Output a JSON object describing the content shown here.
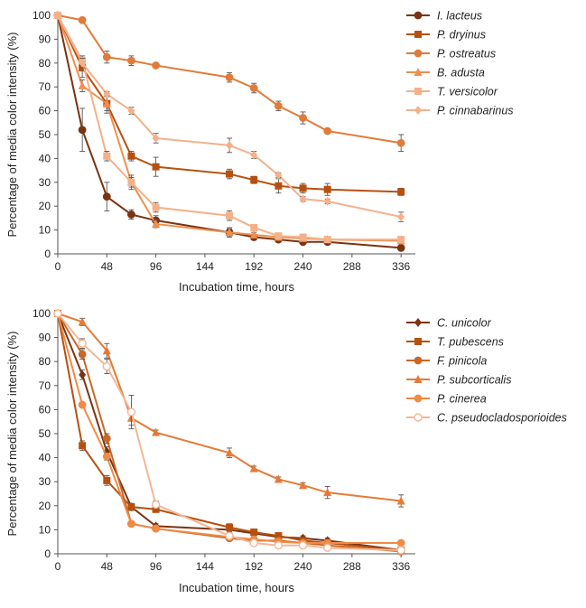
{
  "chart_data": [
    {
      "type": "line",
      "title": "",
      "xlabel": "Incubation time, hours",
      "ylabel": "Percentage of media color intensity (%)",
      "xlim": [
        0,
        350
      ],
      "ylim": [
        0,
        100
      ],
      "xticks": [
        0,
        48,
        96,
        144,
        192,
        240,
        288,
        336
      ],
      "yticks": [
        0,
        10,
        20,
        30,
        40,
        50,
        60,
        70,
        80,
        90,
        100
      ],
      "legend_position": "top-right",
      "series": [
        {
          "name": "I. lacteus",
          "marker": "circle",
          "color": "#7a3311",
          "x": [
            0,
            24,
            48,
            72,
            96,
            168,
            192,
            216,
            240,
            264,
            336
          ],
          "y": [
            100,
            52,
            24,
            16.5,
            14,
            9,
            7,
            6,
            5,
            5,
            2.5
          ],
          "err": [
            0,
            9,
            6,
            2,
            2,
            2,
            1,
            1,
            1,
            1,
            1
          ]
        },
        {
          "name": "P. dryinus",
          "marker": "square",
          "color": "#b7500f",
          "x": [
            0,
            24,
            48,
            72,
            96,
            168,
            192,
            216,
            240,
            264,
            336
          ],
          "y": [
            100,
            78,
            63,
            41,
            36.5,
            33.5,
            31,
            28.5,
            27.5,
            27,
            26
          ],
          "err": [
            0,
            4,
            4,
            2,
            4,
            2,
            1.5,
            3,
            2,
            2.5,
            1.5
          ]
        },
        {
          "name": "P. ostreatus",
          "marker": "circle",
          "color": "#e07b39",
          "x": [
            0,
            24,
            48,
            72,
            96,
            168,
            192,
            216,
            240,
            264,
            336
          ],
          "y": [
            100,
            98,
            82.5,
            81,
            79,
            74,
            69.5,
            62,
            57,
            51.5,
            46.5
          ],
          "err": [
            0,
            0.5,
            2.5,
            2,
            0.5,
            2,
            2,
            2,
            2.5,
            0.5,
            3.5
          ]
        },
        {
          "name": "B. adusta",
          "marker": "triangle",
          "color": "#ef8f4e",
          "x": [
            0,
            24,
            48,
            72,
            96,
            168,
            192,
            216,
            240,
            264,
            336
          ],
          "y": [
            100,
            70.5,
            63,
            30,
            12.5,
            9,
            8,
            7,
            6.5,
            6,
            5.5
          ],
          "err": [
            0,
            2.5,
            3,
            2,
            1.5,
            1.5,
            1,
            1,
            1,
            1,
            1
          ]
        },
        {
          "name": "T. versicolor",
          "marker": "square",
          "color": "#f5b088",
          "x": [
            0,
            24,
            48,
            72,
            96,
            168,
            192,
            216,
            240,
            264,
            336
          ],
          "y": [
            100,
            81,
            41,
            30,
            19.5,
            16,
            11,
            7.5,
            7,
            6,
            6
          ],
          "err": [
            0,
            2,
            2,
            3,
            2,
            2,
            1,
            1,
            1,
            1,
            1
          ]
        },
        {
          "name": "P. cinnabarinus",
          "marker": "diamond",
          "color": "#f2b18c",
          "x": [
            0,
            24,
            48,
            72,
            96,
            168,
            192,
            216,
            240,
            264,
            336
          ],
          "y": [
            100,
            80,
            67,
            60,
            48.5,
            45.5,
            41.5,
            33,
            23,
            22,
            15.5
          ],
          "err": [
            0,
            2,
            1,
            1.5,
            2,
            3,
            1.5,
            1,
            1,
            1,
            2
          ]
        }
      ]
    },
    {
      "type": "line",
      "title": "",
      "xlabel": "Incubation time, hours",
      "ylabel": "Percentage of media color intensity (%)",
      "xlim": [
        0,
        350
      ],
      "ylim": [
        0,
        100
      ],
      "xticks": [
        0,
        48,
        96,
        144,
        192,
        240,
        288,
        336
      ],
      "yticks": [
        0,
        10,
        20,
        30,
        40,
        50,
        60,
        70,
        80,
        90,
        100
      ],
      "legend_position": "top-right",
      "series": [
        {
          "name": "C. unicolor",
          "marker": "diamond",
          "color": "#7a3311",
          "x": [
            0,
            24,
            48,
            72,
            96,
            168,
            192,
            216,
            240,
            264,
            336
          ],
          "y": [
            100,
            74.5,
            42.5,
            19.5,
            11.5,
            10,
            8.5,
            7,
            6.5,
            5.5,
            1.5
          ],
          "err": [
            0,
            2,
            2,
            1,
            1,
            1,
            1,
            1,
            1,
            1,
            0.5
          ]
        },
        {
          "name": "T. pubescens",
          "marker": "square",
          "color": "#b7500f",
          "x": [
            0,
            24,
            48,
            72,
            96,
            168,
            192,
            216,
            240,
            264,
            336
          ],
          "y": [
            100,
            45,
            30.5,
            19.5,
            18.5,
            11,
            9,
            7.5,
            5.5,
            4.5,
            1.5
          ],
          "err": [
            0,
            2,
            2,
            1.5,
            1,
            1.5,
            1,
            1,
            1,
            1,
            0.5
          ]
        },
        {
          "name": "F. pinicola",
          "marker": "circle",
          "color": "#c96826",
          "x": [
            0,
            24,
            48,
            72,
            96,
            168,
            192,
            216,
            240,
            264,
            336
          ],
          "y": [
            100,
            83,
            48,
            12.5,
            10.5,
            6.5,
            5.5,
            5.5,
            4.5,
            3.5,
            1
          ],
          "err": [
            0,
            2,
            2,
            1,
            1,
            1,
            1,
            1,
            1,
            0.5,
            0.5
          ]
        },
        {
          "name": "P. subcorticalis",
          "marker": "triangle",
          "color": "#e57a37",
          "x": [
            0,
            24,
            48,
            72,
            96,
            168,
            192,
            216,
            240,
            264,
            336
          ],
          "y": [
            100,
            96.5,
            84.5,
            56.5,
            50.5,
            42,
            35.5,
            31,
            28.5,
            25.5,
            22
          ],
          "err": [
            0,
            1.5,
            3,
            3,
            1,
            2,
            1,
            1,
            1,
            2.5,
            2.5
          ]
        },
        {
          "name": "P. cinerea",
          "marker": "circle",
          "color": "#f08a45",
          "x": [
            0,
            24,
            48,
            72,
            96,
            168,
            192,
            216,
            240,
            264,
            336
          ],
          "y": [
            100,
            62,
            40.5,
            12.5,
            10.5,
            7,
            6,
            5,
            4.5,
            4.5,
            4.5
          ],
          "err": [
            0,
            1,
            1.5,
            1,
            1,
            1,
            0.5,
            0.5,
            0.5,
            0.5,
            0.5
          ]
        },
        {
          "name": "C. pseudocladosporioides",
          "marker": "circle-open",
          "color": "#f2b796",
          "x": [
            0,
            24,
            48,
            72,
            96,
            168,
            192,
            216,
            240,
            264,
            336
          ],
          "y": [
            100,
            87.5,
            78,
            59,
            20.5,
            7.5,
            4.5,
            3.5,
            3.5,
            2.5,
            1.5
          ],
          "err": [
            0,
            2,
            3,
            7,
            1.5,
            1,
            1,
            1,
            0.5,
            0.5,
            0.5
          ]
        }
      ]
    }
  ]
}
